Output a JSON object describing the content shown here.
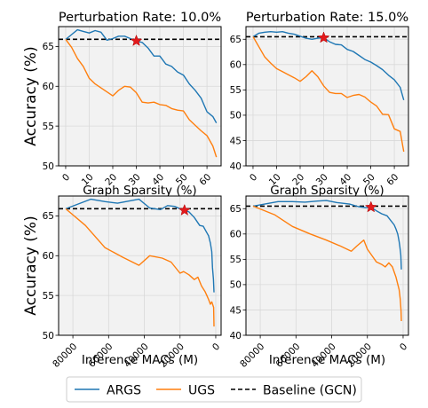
{
  "colors": {
    "args": "#1f77b4",
    "ugs": "#ff7f0e",
    "baseline": "#000000",
    "panel_background": "#f2f2f2",
    "star": "#e31a1c"
  },
  "legend": {
    "placement": "bottom-center",
    "entries": [
      {
        "key": "args",
        "label": "ARGS"
      },
      {
        "key": "ugs",
        "label": "UGS"
      },
      {
        "key": "baseline",
        "label": "Baseline (GCN)"
      }
    ]
  },
  "chart_data": [
    {
      "type": "line",
      "title": "Perturbation Rate: 10.0%",
      "xlabel": "Graph Sparsity (%)",
      "ylabel": "Accuracy (%)",
      "xlim": [
        -3,
        66
      ],
      "ylim": [
        50,
        67.5
      ],
      "x_reversed": false,
      "xticks": [
        0,
        10,
        20,
        30,
        40,
        50,
        60
      ],
      "xtick_labels": [
        "0",
        "10",
        "20",
        "30",
        "40",
        "50",
        "60"
      ],
      "yticks": [
        50,
        55,
        60,
        65
      ],
      "ytick_labels": [
        "50",
        "55",
        "60",
        "65"
      ],
      "grid": true,
      "baseline": 65.9,
      "star": {
        "x": 30,
        "y": 65.7
      },
      "series": [
        {
          "key": "args",
          "name": "ARGS",
          "x": [
            0,
            2.5,
            5,
            7.5,
            10,
            12.5,
            15,
            17.5,
            20,
            22.5,
            25,
            27.5,
            30,
            32.5,
            35,
            37.5,
            40,
            42.5,
            45,
            47.5,
            50,
            52.5,
            55,
            57.5,
            60,
            62.5,
            64
          ],
          "y": [
            65.9,
            66.5,
            67.1,
            66.9,
            66.7,
            67.0,
            66.8,
            65.8,
            66.0,
            66.3,
            66.3,
            66.0,
            65.7,
            65.5,
            64.8,
            63.8,
            63.8,
            62.8,
            62.5,
            61.8,
            61.4,
            60.3,
            59.5,
            58.5,
            56.8,
            56.2,
            55.4
          ]
        },
        {
          "key": "ugs",
          "name": "UGS",
          "x": [
            0,
            2.5,
            5,
            7.5,
            10,
            12.5,
            15,
            17.5,
            20,
            22.5,
            25,
            27.5,
            30,
            32.5,
            35,
            37.5,
            40,
            42.5,
            45,
            47.5,
            50,
            52.5,
            55,
            57.5,
            60,
            62.5,
            64
          ],
          "y": [
            65.9,
            64.9,
            63.5,
            62.5,
            61.0,
            60.3,
            59.8,
            59.3,
            58.8,
            59.5,
            60.0,
            59.9,
            59.2,
            58.0,
            57.9,
            58.0,
            57.7,
            57.6,
            57.2,
            57.0,
            56.9,
            55.8,
            55.1,
            54.4,
            53.8,
            52.5,
            51.1
          ]
        }
      ]
    },
    {
      "type": "line",
      "title": "Perturbation Rate: 15.0%",
      "xlabel": "Graph Sparsity (%)",
      "ylabel": "",
      "xlim": [
        -3,
        66
      ],
      "ylim": [
        40,
        67.5
      ],
      "x_reversed": false,
      "xticks": [
        0,
        10,
        20,
        30,
        40,
        50,
        60
      ],
      "xtick_labels": [
        "0",
        "10",
        "20",
        "30",
        "40",
        "50",
        "60"
      ],
      "yticks": [
        40,
        45,
        50,
        55,
        60,
        65
      ],
      "ytick_labels": [
        "40",
        "45",
        "50",
        "55",
        "60",
        "65"
      ],
      "grid": true,
      "baseline": 65.5,
      "star": {
        "x": 30,
        "y": 65.3
      },
      "series": [
        {
          "key": "args",
          "name": "ARGS",
          "x": [
            0,
            2.5,
            5,
            7.5,
            10,
            12.5,
            15,
            17.5,
            20,
            22.5,
            25,
            27.5,
            30,
            32.5,
            35,
            37.5,
            40,
            42.5,
            45,
            47.5,
            50,
            52.5,
            55,
            57.5,
            60,
            62.5,
            64
          ],
          "y": [
            65.5,
            66.2,
            66.4,
            66.5,
            66.4,
            66.5,
            66.2,
            66.0,
            65.6,
            65.2,
            65.0,
            65.2,
            65.3,
            64.5,
            64.0,
            63.9,
            63.0,
            62.6,
            61.8,
            61.0,
            60.5,
            59.8,
            59.0,
            57.9,
            57.0,
            55.5,
            53.0
          ]
        },
        {
          "key": "ugs",
          "name": "UGS",
          "x": [
            0,
            2.5,
            5,
            7.5,
            10,
            12.5,
            15,
            17.5,
            20,
            22.5,
            25,
            27.5,
            30,
            32.5,
            35,
            37.5,
            40,
            42.5,
            45,
            47.5,
            50,
            52.5,
            55,
            57.5,
            60,
            62.5,
            64
          ],
          "y": [
            65.5,
            63.5,
            61.5,
            60.3,
            59.2,
            58.6,
            58.0,
            57.4,
            56.7,
            57.6,
            58.8,
            57.6,
            55.8,
            54.5,
            54.3,
            54.3,
            53.5,
            53.9,
            54.1,
            53.6,
            52.6,
            51.8,
            50.2,
            50.1,
            47.3,
            46.8,
            42.8
          ]
        }
      ]
    },
    {
      "type": "line",
      "title": "",
      "xlabel": "Inference MACs (M)",
      "ylabel": "Accuracy (%)",
      "xlim": [
        88000,
        -3000
      ],
      "ylim": [
        50,
        67.5
      ],
      "x_reversed": true,
      "xticks": [
        80000,
        60000,
        40000,
        20000,
        0
      ],
      "xtick_labels": [
        "80000",
        "60000",
        "40000",
        "20000",
        "0"
      ],
      "yticks": [
        50,
        55,
        60,
        65
      ],
      "ytick_labels": [
        "50",
        "55",
        "60",
        "65"
      ],
      "grid": true,
      "baseline": 65.9,
      "star": {
        "x": 17500,
        "y": 65.7
      },
      "series": [
        {
          "key": "args",
          "name": "ARGS",
          "x": [
            84000,
            70000,
            62000,
            55000,
            48000,
            43000,
            37000,
            31000,
            27000,
            23000,
            19000,
            17500,
            15000,
            12000,
            9000,
            7000,
            5000,
            4000,
            3000,
            2200,
            1800,
            1300,
            1000
          ],
          "y": [
            65.9,
            67.1,
            66.8,
            66.6,
            66.9,
            67.1,
            66.0,
            65.8,
            66.3,
            66.2,
            65.8,
            65.7,
            65.5,
            64.8,
            63.8,
            63.7,
            62.9,
            62.5,
            61.6,
            60.5,
            58.5,
            57.0,
            55.4
          ]
        },
        {
          "key": "ugs",
          "name": "UGS",
          "x": [
            84000,
            73000,
            62000,
            52000,
            43000,
            37000,
            30000,
            25000,
            20000,
            18000,
            15000,
            12000,
            10000,
            8000,
            6000,
            5000,
            4000,
            3000,
            2200,
            1600,
            1200,
            1000
          ],
          "y": [
            65.9,
            63.8,
            61.0,
            59.8,
            58.8,
            60.0,
            59.7,
            59.2,
            57.8,
            58.0,
            57.6,
            57.0,
            57.3,
            56.2,
            55.5,
            55.0,
            54.5,
            53.9,
            54.2,
            53.8,
            53.5,
            51.1
          ]
        }
      ]
    },
    {
      "type": "line",
      "title": "",
      "xlabel": "Inference MACs (M)",
      "ylabel": "",
      "xlim": [
        88000,
        -3000
      ],
      "ylim": [
        40,
        67.5
      ],
      "x_reversed": true,
      "xticks": [
        80000,
        60000,
        40000,
        20000,
        0
      ],
      "xtick_labels": [
        "80000",
        "60000",
        "40000",
        "20000",
        "0"
      ],
      "yticks": [
        40,
        45,
        50,
        55,
        60,
        65
      ],
      "ytick_labels": [
        "40",
        "45",
        "50",
        "55",
        "60",
        "65"
      ],
      "grid": true,
      "baseline": 65.5,
      "star": {
        "x": 18000,
        "y": 65.3
      },
      "series": [
        {
          "key": "args",
          "name": "ARGS",
          "x": [
            84000,
            70000,
            62000,
            55000,
            48000,
            43000,
            37000,
            30000,
            25000,
            21000,
            18000,
            15000,
            12000,
            9000,
            7000,
            5000,
            4000,
            3000,
            2200,
            1800,
            1300,
            1000
          ],
          "y": [
            65.5,
            66.4,
            66.4,
            66.3,
            66.5,
            66.6,
            66.2,
            65.9,
            65.4,
            65.2,
            65.3,
            64.6,
            64.0,
            63.6,
            62.7,
            61.8,
            61.0,
            60.0,
            58.5,
            57.5,
            55.8,
            53.0
          ]
        },
        {
          "key": "ugs",
          "name": "UGS",
          "x": [
            84000,
            72000,
            62000,
            52000,
            43000,
            35000,
            29000,
            26000,
            22000,
            20000,
            17000,
            15000,
            12000,
            10000,
            8000,
            6000,
            5000,
            4000,
            3000,
            2200,
            1600,
            1200,
            1000
          ],
          "y": [
            65.5,
            63.8,
            61.5,
            60.0,
            58.8,
            57.6,
            56.6,
            57.6,
            58.8,
            57.0,
            55.5,
            54.5,
            54.0,
            53.5,
            54.3,
            53.5,
            52.5,
            51.5,
            50.1,
            49.0,
            47.2,
            45.0,
            42.8
          ]
        }
      ]
    }
  ]
}
